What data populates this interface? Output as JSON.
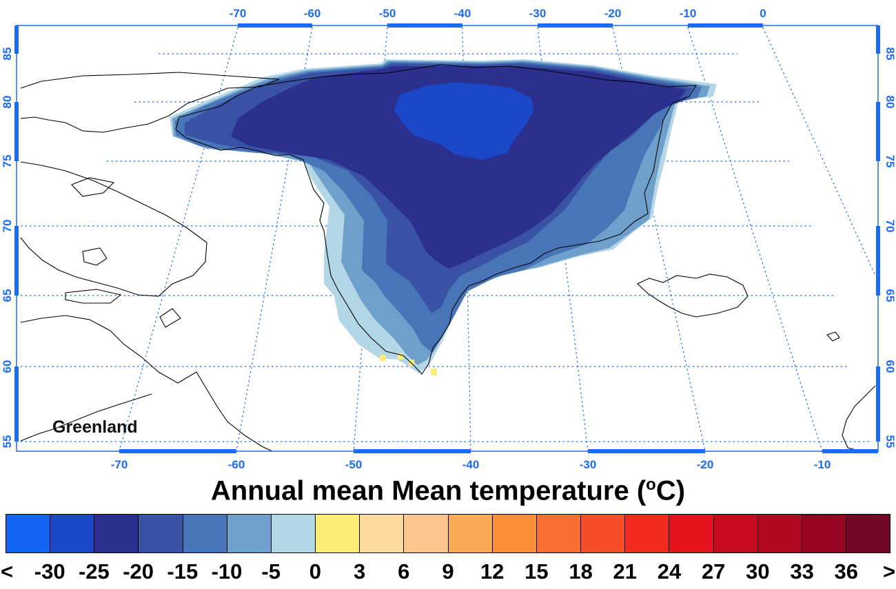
{
  "map": {
    "region_label": "Greenland",
    "lon_top": [
      "-70",
      "-60",
      "-50",
      "-40",
      "-30",
      "-20",
      "-10",
      "0"
    ],
    "lon_bottom": [
      "-70",
      "-60",
      "-50",
      "-40",
      "-30",
      "-20",
      "-10"
    ],
    "lat_left": [
      "85",
      "80",
      "75",
      "70",
      "65",
      "60",
      "55"
    ],
    "lat_right": [
      "85",
      "80",
      "75",
      "70",
      "65",
      "60",
      "55"
    ],
    "grid_color": "#1a6bf5",
    "frame_color": "#1a6bf5"
  },
  "legend": {
    "title_main": "Annual mean Mean temperature (",
    "title_sup": "o",
    "title_end": "C)",
    "colors": [
      "#1565f5",
      "#1a48c8",
      "#2b2f8e",
      "#3a52a4",
      "#4775b8",
      "#6f9fcb",
      "#b4d7e8",
      "#fbee78",
      "#fddc9c",
      "#fcc58c",
      "#fcaa55",
      "#fb8e38",
      "#f96e2e",
      "#f54d25",
      "#f02b1e",
      "#e3121b",
      "#c60b1f",
      "#b0081f",
      "#970523",
      "#6f0725"
    ],
    "labels": [
      "<",
      "-30",
      "-25",
      "-20",
      "-15",
      "-10",
      "-5",
      "0",
      "3",
      "6",
      "9",
      "12",
      "15",
      "18",
      "21",
      "24",
      "27",
      "30",
      "33",
      "36",
      ">"
    ]
  }
}
